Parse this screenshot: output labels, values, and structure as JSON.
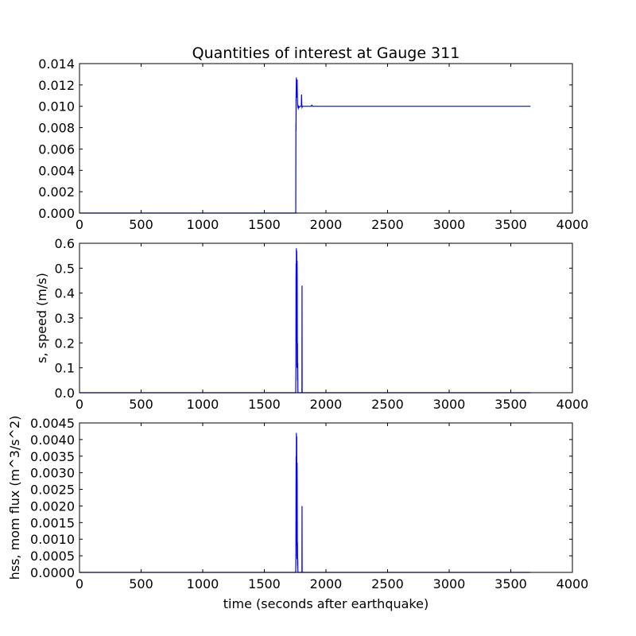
{
  "figure": {
    "title": "Quantities of interest at Gauge 311"
  },
  "chart_data": [
    {
      "type": "line",
      "title": "Quantities of interest at Gauge 311",
      "xlabel": "",
      "ylabel": "",
      "xlim": [
        0,
        4000
      ],
      "ylim": [
        0,
        0.014
      ],
      "x_ticks": [
        0,
        500,
        1000,
        1500,
        2000,
        2500,
        3000,
        3500,
        4000
      ],
      "x_tick_labels": [
        "0",
        "500",
        "1000",
        "1500",
        "2000",
        "2500",
        "3000",
        "3500",
        "4000"
      ],
      "y_ticks": [
        0,
        0.002,
        0.004,
        0.006,
        0.008,
        0.01,
        0.012,
        0.014
      ],
      "y_tick_labels": [
        "0.000",
        "0.002",
        "0.004",
        "0.006",
        "0.008",
        "0.010",
        "0.012",
        "0.014"
      ],
      "grid": false,
      "legend": "none",
      "series": [
        {
          "color": "#0000ff",
          "x": [
            0,
            1755,
            1756,
            1756.5,
            1757,
            1757.5,
            1758,
            1759,
            1760,
            1761,
            1762,
            1763,
            1764,
            1765,
            1766,
            1768,
            1770,
            1772,
            1775,
            1778,
            1782,
            1790,
            1800,
            1802,
            1804,
            1806,
            1810,
            1820,
            1850,
            1880,
            1885,
            1890,
            1900,
            3660
          ],
          "y": [
            0,
            0,
            0.0075,
            0.0085,
            0.0077,
            0.0105,
            0.0112,
            0.0118,
            0.0127,
            0.0112,
            0.0118,
            0.0123,
            0.0108,
            0.0119,
            0.0125,
            0.0111,
            0.0102,
            0.0099,
            0.0098,
            0.01,
            0.0099,
            0.01,
            0.01,
            0.0111,
            0.0102,
            0.0099,
            0.01,
            0.01,
            0.01,
            0.01,
            0.0101,
            0.01,
            0.01,
            0.01
          ]
        }
      ]
    },
    {
      "type": "line",
      "title": "",
      "xlabel": "",
      "ylabel": "s, speed (m/s)",
      "xlim": [
        0,
        4000
      ],
      "ylim": [
        0,
        0.6
      ],
      "x_ticks": [
        0,
        500,
        1000,
        1500,
        2000,
        2500,
        3000,
        3500,
        4000
      ],
      "x_tick_labels": [
        "0",
        "500",
        "1000",
        "1500",
        "2000",
        "2500",
        "3000",
        "3500",
        "4000"
      ],
      "y_ticks": [
        0,
        0.1,
        0.2,
        0.3,
        0.4,
        0.5,
        0.6
      ],
      "y_tick_labels": [
        "0.0",
        "0.1",
        "0.2",
        "0.3",
        "0.4",
        "0.5",
        "0.6"
      ],
      "grid": false,
      "legend": "none",
      "series": [
        {
          "color": "#0000ff",
          "x": [
            0,
            1755,
            1756,
            1757,
            1758,
            1759,
            1760,
            1761,
            1762,
            1763,
            1764,
            1765,
            1766,
            1767,
            1768,
            1769,
            1770,
            1771,
            1772,
            1773,
            1775,
            1800,
            1805,
            1806,
            1807,
            1808,
            3660
          ],
          "y": [
            0,
            0,
            0.1,
            0.45,
            0.52,
            0.38,
            0.58,
            0.2,
            0.48,
            0.57,
            0.3,
            0.1,
            0.53,
            0.45,
            0.12,
            0.2,
            0.05,
            0.12,
            0.02,
            0.0,
            0.0,
            0.0,
            0.0,
            0.43,
            0.0,
            0.0,
            0.0
          ]
        }
      ]
    },
    {
      "type": "line",
      "title": "",
      "xlabel": "time (seconds after earthquake)",
      "ylabel": "hss, mom flux (m^3/s^2)",
      "xlim": [
        0,
        4000
      ],
      "ylim": [
        0,
        0.0045
      ],
      "x_ticks": [
        0,
        500,
        1000,
        1500,
        2000,
        2500,
        3000,
        3500,
        4000
      ],
      "x_tick_labels": [
        "0",
        "500",
        "1000",
        "1500",
        "2000",
        "2500",
        "3000",
        "3500",
        "4000"
      ],
      "y_ticks": [
        0,
        0.0005,
        0.001,
        0.0015,
        0.002,
        0.0025,
        0.003,
        0.0035,
        0.004,
        0.0045
      ],
      "y_tick_labels": [
        "0.0000",
        "0.0005",
        "0.0010",
        "0.0015",
        "0.0020",
        "0.0025",
        "0.0030",
        "0.0035",
        "0.0040",
        "0.0045"
      ],
      "grid": false,
      "legend": "none",
      "series": [
        {
          "color": "#0000ff",
          "x": [
            0,
            1755,
            1756,
            1757,
            1758,
            1759,
            1760,
            1761,
            1762,
            1763,
            1764,
            1765,
            1766,
            1767,
            1768,
            1769,
            1770,
            1771,
            1772,
            1773,
            1775,
            1800,
            1805,
            1806,
            1807,
            1808,
            3660
          ],
          "y": [
            0,
            0,
            0.0005,
            0.0024,
            0.0035,
            0.0015,
            0.0042,
            0.0008,
            0.0028,
            0.0041,
            0.0012,
            0.0004,
            0.0033,
            0.0026,
            0.0005,
            0.0009,
            0.0002,
            0.0004,
            0.0001,
            0.0,
            0.0,
            0.0,
            0.0,
            0.002,
            0.0,
            0.0,
            0.0
          ]
        }
      ]
    }
  ]
}
